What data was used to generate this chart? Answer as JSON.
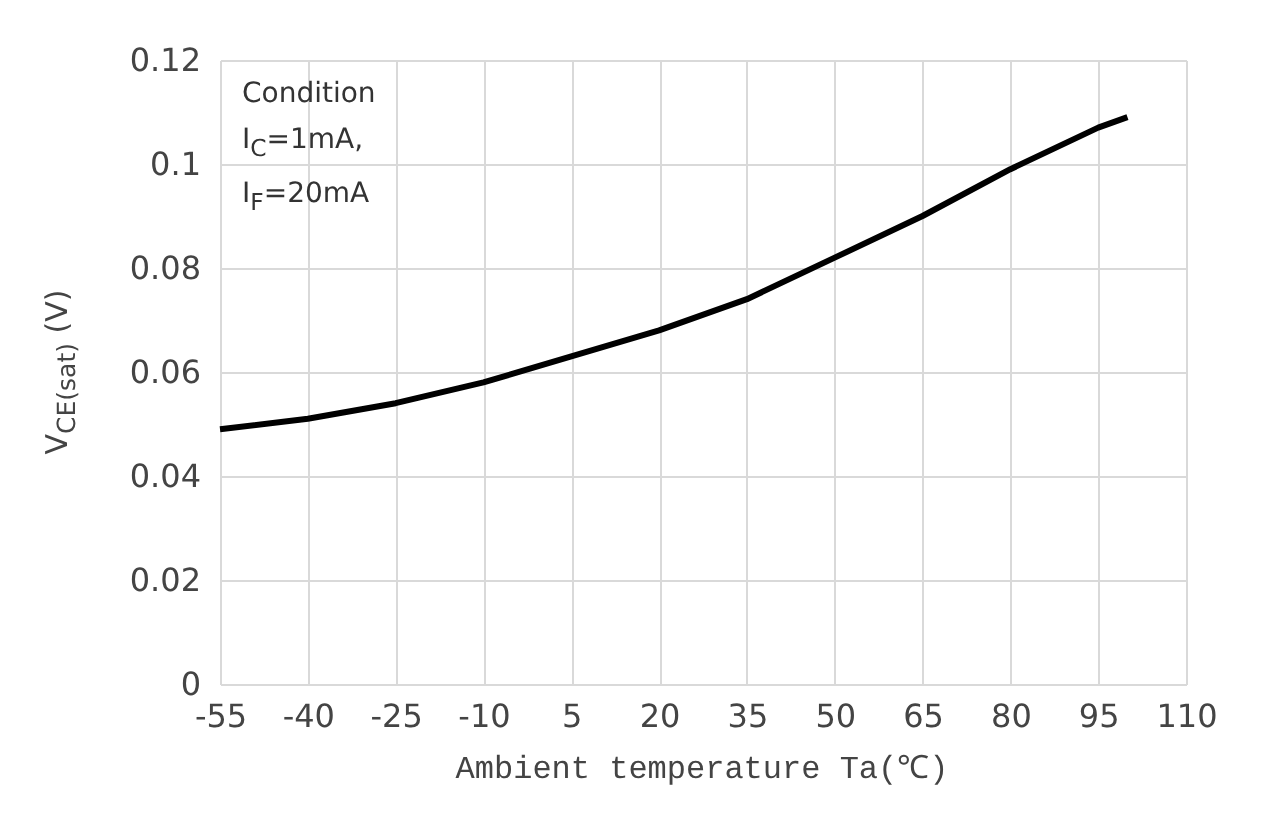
{
  "chart_data": {
    "type": "line",
    "xlabel": "Ambient temperature Ta(℃)",
    "ylabel": "V$_{CE(sat)}$ (V)",
    "annotations": [
      "Condition",
      "I$_{C}$=1mA,",
      "I$_{F}$=20mA"
    ],
    "x": [
      -55,
      -40,
      -25,
      -10,
      5,
      20,
      35,
      50,
      65,
      80,
      95,
      100
    ],
    "series": [
      {
        "color": "#000000",
        "values": [
          0.049,
          0.051,
          0.054,
          0.058,
          0.063,
          0.068,
          0.074,
          0.082,
          0.09,
          0.099,
          0.107,
          0.109
        ]
      }
    ],
    "xlim": [
      -55,
      110
    ],
    "xticks": [
      -55,
      -40,
      -25,
      -10,
      5,
      20,
      35,
      50,
      65,
      80,
      95,
      110
    ],
    "ylim": [
      0,
      0.12
    ],
    "yticks": [
      0,
      0.02,
      0.04,
      0.06,
      0.08,
      0.1,
      0.12
    ],
    "grid": true,
    "marker": "none",
    "line_style": "solid"
  }
}
